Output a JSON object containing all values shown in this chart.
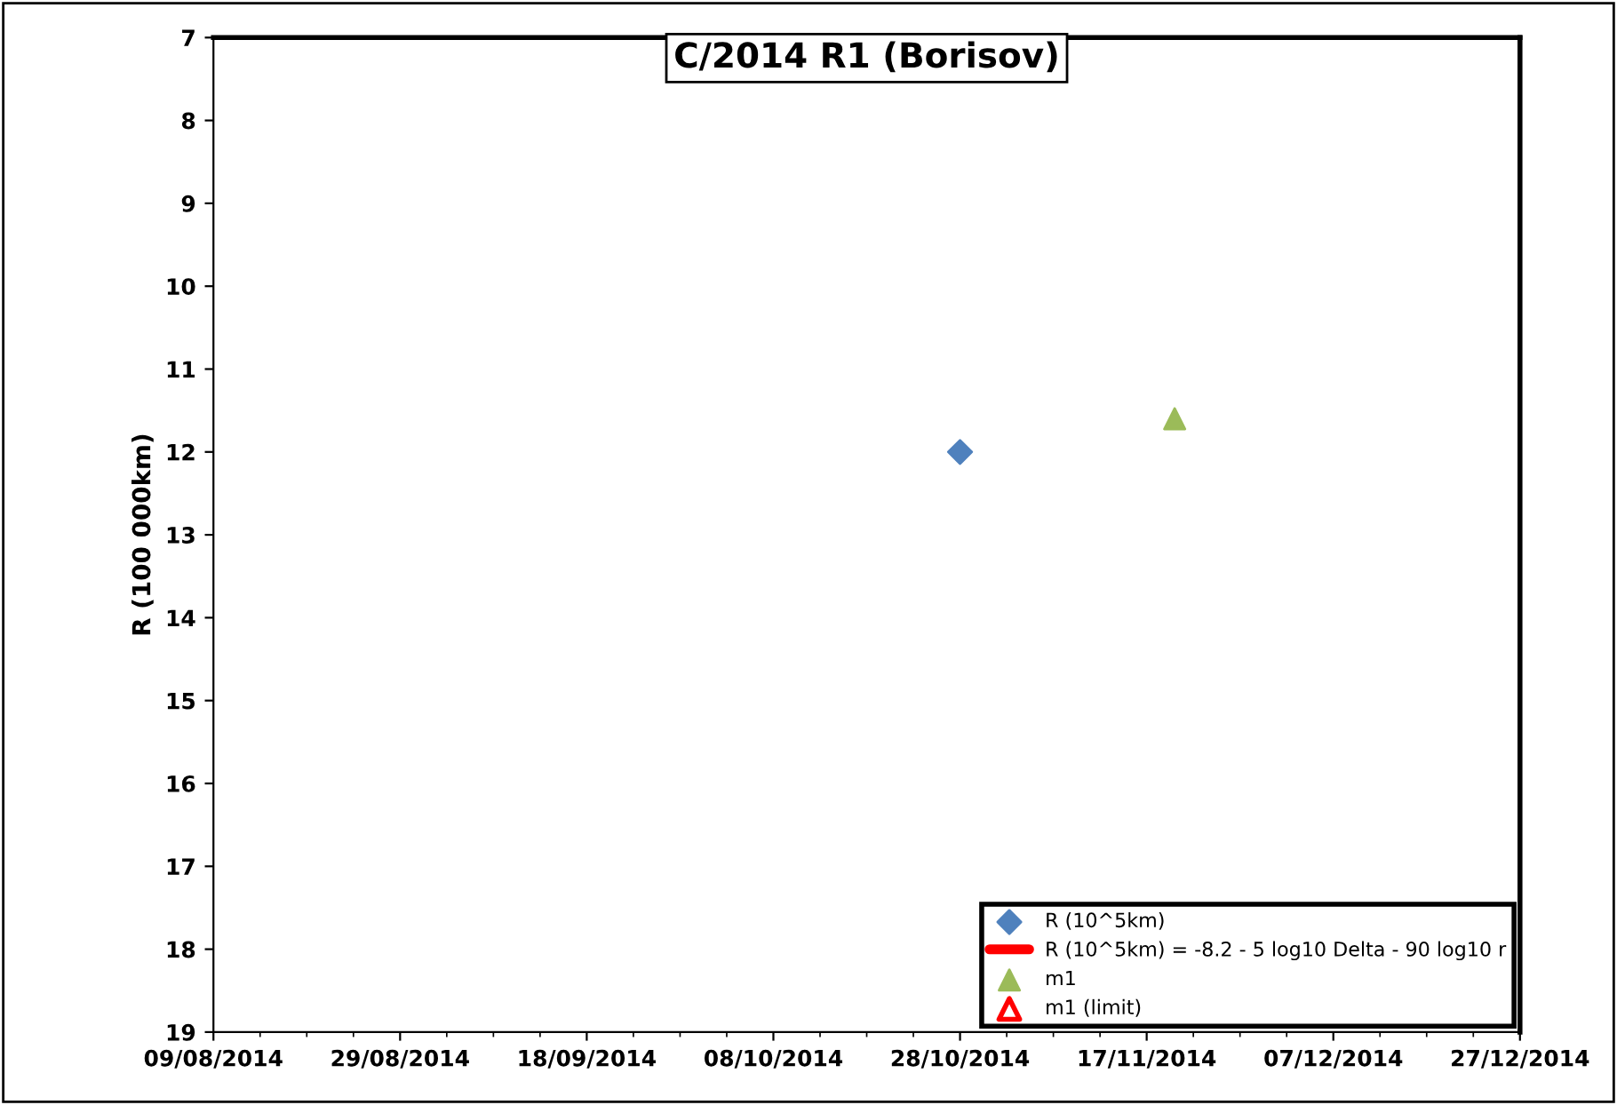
{
  "chart_data": {
    "type": "scatter",
    "title": "C/2014 R1 (Borisov)",
    "ylabel": "R (100 000km)",
    "xlim": [
      "2014-08-09",
      "2014-12-27"
    ],
    "xticks": [
      {
        "value": "2014-08-09",
        "label": "09/08/2014"
      },
      {
        "value": "2014-08-29",
        "label": "29/08/2014"
      },
      {
        "value": "2014-09-18",
        "label": "18/09/2014"
      },
      {
        "value": "2014-10-08",
        "label": "08/10/2014"
      },
      {
        "value": "2014-10-28",
        "label": "28/10/2014"
      },
      {
        "value": "2014-11-17",
        "label": "17/11/2014"
      },
      {
        "value": "2014-12-07",
        "label": "07/12/2014"
      },
      {
        "value": "2014-12-27",
        "label": "27/12/2014"
      }
    ],
    "ylim": [
      19,
      7
    ],
    "yticks": [
      7,
      8,
      9,
      10,
      11,
      12,
      13,
      14,
      15,
      16,
      17,
      18,
      19
    ],
    "grid": false,
    "legend": "bottom right",
    "series": [
      {
        "name": "R (10^5km)",
        "marker": "diamond",
        "color": "#4f81bd",
        "x": [
          "2014-10-28"
        ],
        "values": [
          12.0
        ]
      },
      {
        "name": "R (10^5km) = -8.2 - 5 log10 Delta - 90 log10 r",
        "type": "line",
        "color": "#ff0000"
      },
      {
        "name": "m1",
        "marker": "triangle",
        "color": "#9bbb59",
        "x": [
          "2014-11-20"
        ],
        "values": [
          11.6
        ]
      },
      {
        "name": "m1 (limit)",
        "marker": "triangle",
        "color": "#ff0000"
      }
    ]
  }
}
